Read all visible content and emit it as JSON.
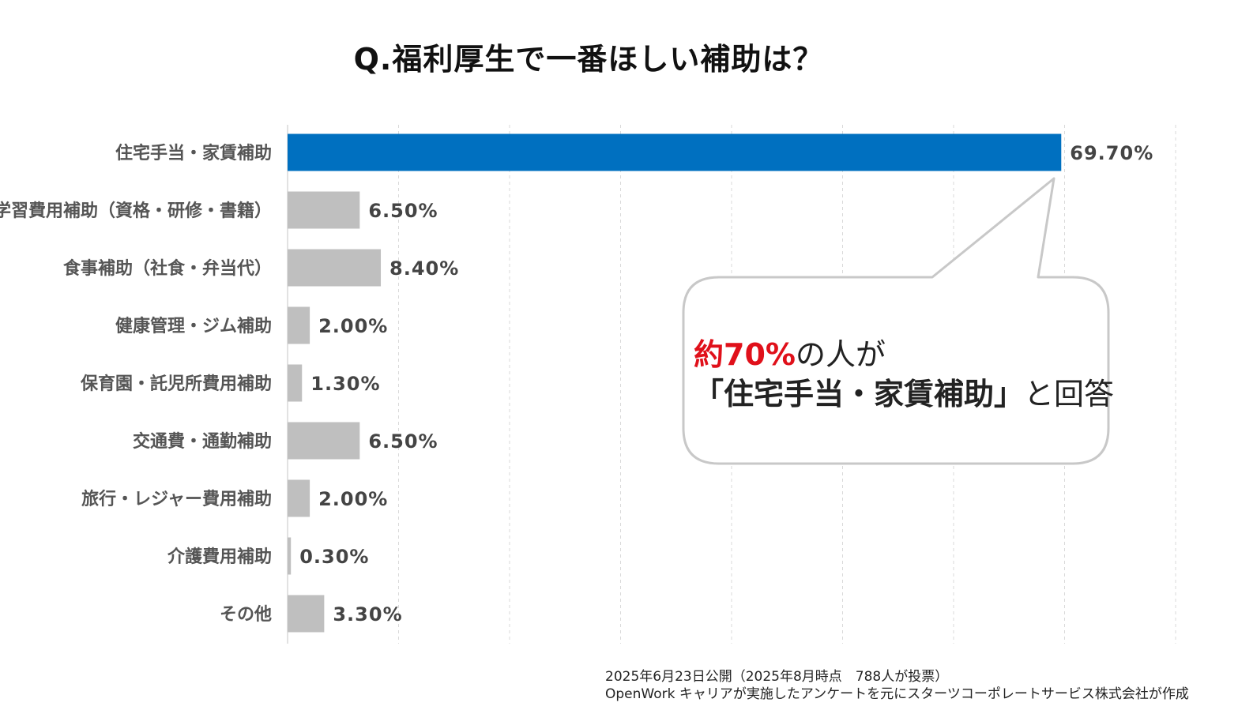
{
  "title": "Q.福利厚生で一番ほしい補助は？",
  "colors": {
    "highlight_bar": "#0070c0",
    "other_bar": "#bfbfbf",
    "callout_accent": "#e0101a",
    "grid": "#d9d9d9"
  },
  "chart_data": {
    "type": "bar",
    "orientation": "horizontal",
    "title": "Q.福利厚生で一番ほしい補助は？",
    "xlabel": "",
    "ylabel": "",
    "xlim": [
      0,
      80
    ],
    "grid": true,
    "categories": [
      "住宅手当・家賃補助",
      "学習費用補助（資格・研修・書籍）",
      "食事補助（社食・弁当代）",
      "健康管理・ジム補助",
      "保育園・託児所費用補助",
      "交通費・通勤補助",
      "旅行・レジャー費用補助",
      "介護費用補助",
      "その他"
    ],
    "values": [
      69.7,
      6.5,
      8.4,
      2.0,
      1.3,
      6.5,
      2.0,
      0.3,
      3.3
    ],
    "value_labels": [
      "69.70%",
      "6.50%",
      "8.40%",
      "2.00%",
      "1.30%",
      "6.50%",
      "2.00%",
      "0.30%",
      "3.30%"
    ],
    "highlighted_index": 0
  },
  "callout": {
    "prefix": "約70%",
    "line1_rest": "の人が",
    "line2_main": "「住宅手当・家賃補助」",
    "line2_tail": "と回答"
  },
  "footnote": {
    "line1": "2025年6月23日公開（2025年8月時点　788人が投票）",
    "line2": "OpenWork キャリアが実施したアンケートを元にスターツコーポレートサービス株式会社が作成"
  }
}
